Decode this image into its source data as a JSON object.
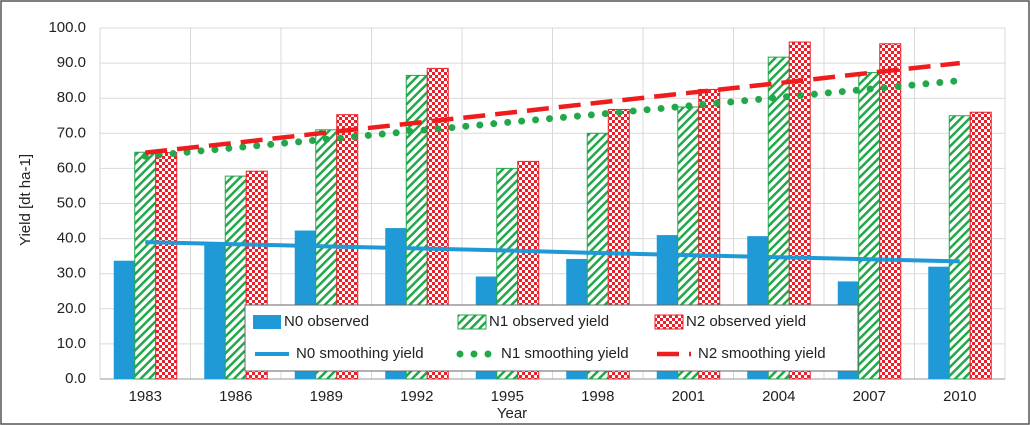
{
  "chart_data": {
    "type": "bar",
    "x_label": "Year",
    "y_label": "Yield [dt ha-1]",
    "categories": [
      "1983",
      "1986",
      "1989",
      "1992",
      "1995",
      "1998",
      "2001",
      "2004",
      "2007",
      "2010"
    ],
    "ylim": [
      0,
      100
    ],
    "yticks": [
      {
        "value": 0,
        "label": "0.0"
      },
      {
        "value": 10,
        "label": "10.0"
      },
      {
        "value": 20,
        "label": "20.0"
      },
      {
        "value": 30,
        "label": "30.0"
      },
      {
        "value": 40,
        "label": "40.0"
      },
      {
        "value": 50,
        "label": "50.0"
      },
      {
        "value": 60,
        "label": "60.0"
      },
      {
        "value": 70,
        "label": "70.0"
      },
      {
        "value": 80,
        "label": "80.0"
      },
      {
        "value": 90,
        "label": "90.0"
      },
      {
        "value": 100,
        "label": "100.0"
      }
    ],
    "grid": true,
    "series": [
      {
        "name": "N0 observed",
        "kind": "bar",
        "pattern": "solid",
        "color": "#1f9ad6",
        "values": [
          33.7,
          39.0,
          42.3,
          43.0,
          29.2,
          34.2,
          41.0,
          40.7,
          27.8,
          32.0
        ]
      },
      {
        "name": "N1 observed yield",
        "kind": "bar",
        "pattern": "hatch",
        "color": "#22a84a",
        "values": [
          64.6,
          57.8,
          71.0,
          86.5,
          60.0,
          70.0,
          77.5,
          91.7,
          87.3,
          75.0
        ]
      },
      {
        "name": "N2 observed yield",
        "kind": "bar",
        "pattern": "checker",
        "color": "#e8202a",
        "values": [
          64.5,
          59.2,
          75.3,
          88.5,
          62.0,
          76.8,
          82.5,
          96.0,
          95.5,
          76.0
        ]
      },
      {
        "name": "N0 smoothing yield",
        "kind": "line",
        "style": "solid",
        "color": "#1f9ad6",
        "values": [
          39.0,
          38.4,
          37.8,
          37.2,
          36.6,
          35.9,
          35.3,
          34.7,
          34.1,
          33.5
        ]
      },
      {
        "name": "N1 smoothing yield",
        "kind": "line",
        "style": "dotted",
        "color": "#22a84a",
        "values": [
          63.5,
          65.9,
          68.3,
          70.7,
          73.1,
          75.4,
          77.8,
          80.2,
          82.6,
          85.0
        ]
      },
      {
        "name": "N2 smoothing yield",
        "kind": "line",
        "style": "dashed",
        "color": "#ee1c1c",
        "values": [
          64.5,
          67.3,
          70.2,
          73.0,
          75.8,
          78.7,
          81.5,
          84.3,
          87.2,
          90.0
        ]
      }
    ]
  }
}
